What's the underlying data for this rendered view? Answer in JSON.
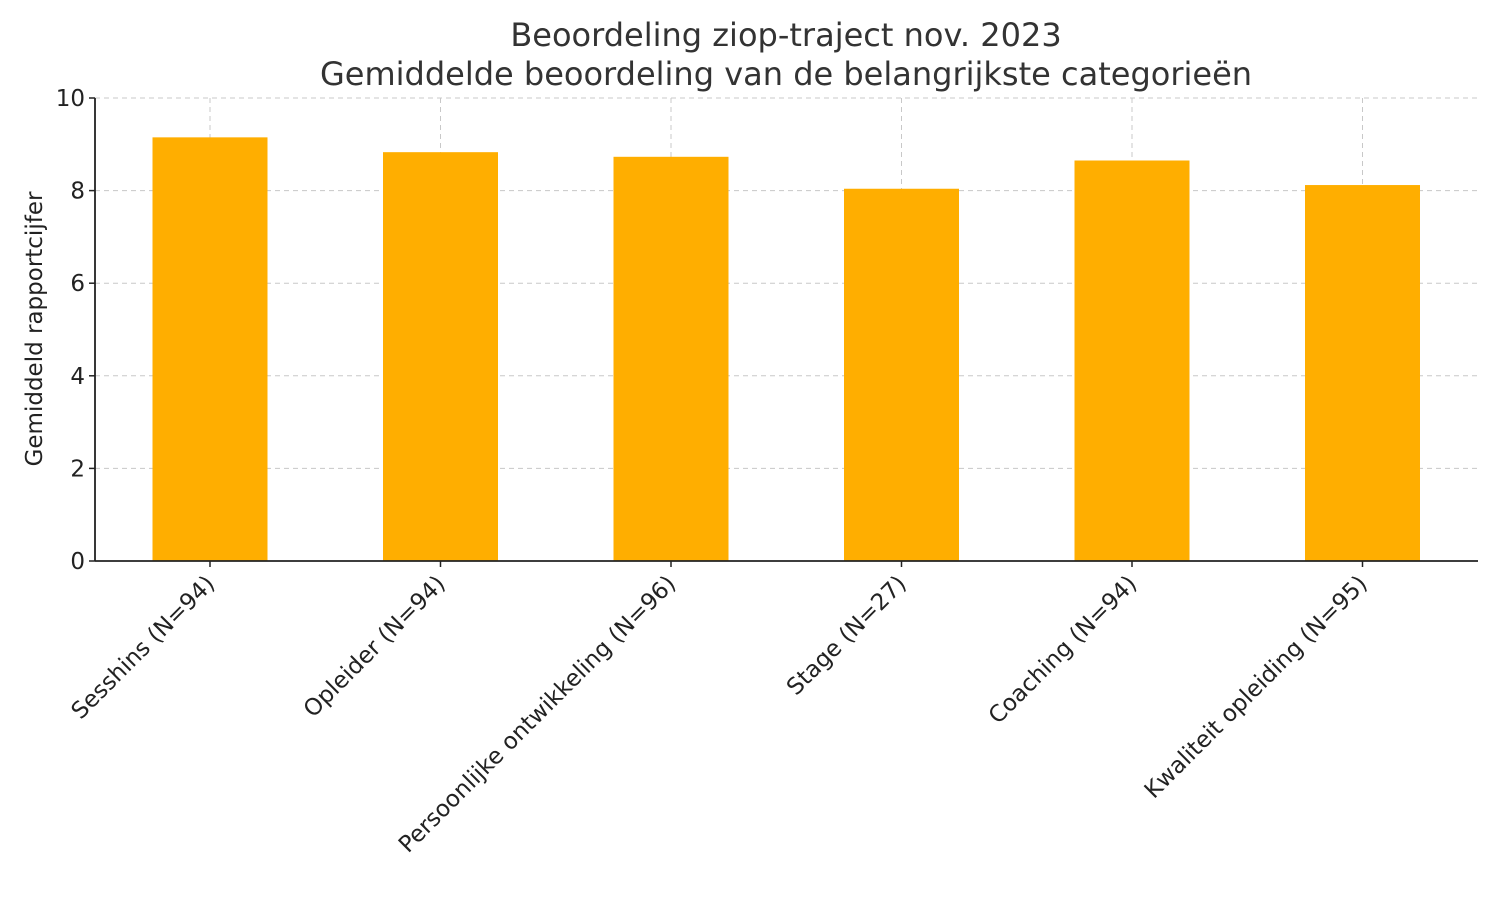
{
  "chart_data": {
    "type": "bar",
    "title": "Beoordeling ziop-traject nov. 2023",
    "subtitle": "Gemiddelde beoordeling van de belangrijkste categorieën",
    "xlabel": "",
    "ylabel": "Gemiddeld rapportcijfer",
    "categories": [
      "Sesshins (N=94)",
      "Opleider (N=94)",
      "Persoonlijke ontwikkeling (N=96)",
      "Stage (N=27)",
      "Coaching (N=94)",
      "Kwaliteit opleiding (N=95)"
    ],
    "values": [
      9.15,
      8.83,
      8.73,
      8.04,
      8.65,
      8.12
    ],
    "ylim": [
      0,
      10
    ],
    "yticks": [
      0,
      2,
      4,
      6,
      8,
      10
    ],
    "grid": true,
    "legend": "none",
    "bar_color": "#FFAE00"
  }
}
